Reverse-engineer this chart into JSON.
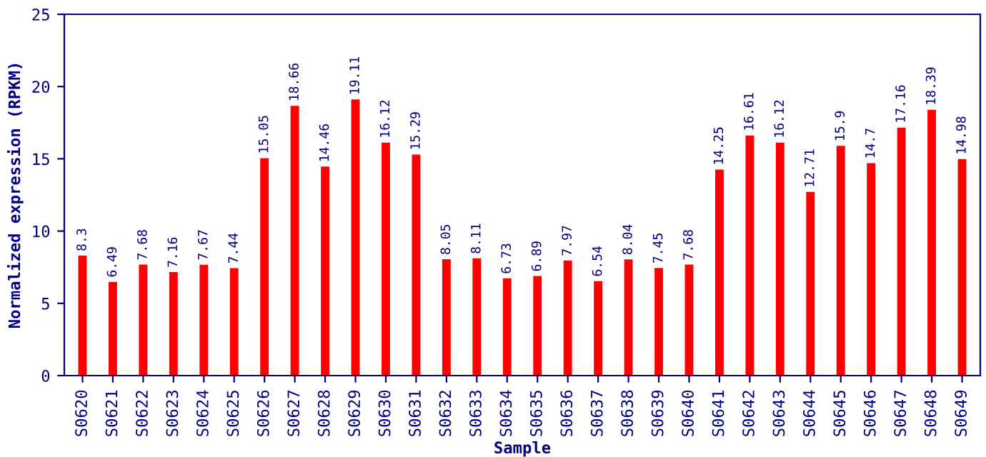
{
  "chart_data": {
    "type": "bar",
    "xlabel": "Sample",
    "ylabel": "Normalized expression (RPKM)",
    "categories": [
      "S0620",
      "S0621",
      "S0622",
      "S0623",
      "S0624",
      "S0625",
      "S0626",
      "S0627",
      "S0628",
      "S0629",
      "S0630",
      "S0631",
      "S0632",
      "S0633",
      "S0634",
      "S0635",
      "S0636",
      "S0637",
      "S0638",
      "S0639",
      "S0640",
      "S0641",
      "S0642",
      "S0643",
      "S0644",
      "S0645",
      "S0646",
      "S0647",
      "S0648",
      "S0649"
    ],
    "values": [
      8.3,
      6.49,
      7.68,
      7.16,
      7.67,
      7.44,
      15.05,
      18.66,
      14.46,
      19.11,
      16.12,
      15.29,
      8.05,
      8.11,
      6.73,
      6.89,
      7.97,
      6.54,
      8.04,
      7.45,
      7.68,
      14.25,
      16.61,
      16.12,
      12.71,
      15.9,
      14.7,
      17.16,
      18.39,
      14.98
    ],
    "color": "#ff0000",
    "ylim": [
      0,
      25
    ],
    "yticks": [
      0,
      5,
      10,
      15,
      20,
      25
    ],
    "grid": false,
    "data_labels": true
  }
}
